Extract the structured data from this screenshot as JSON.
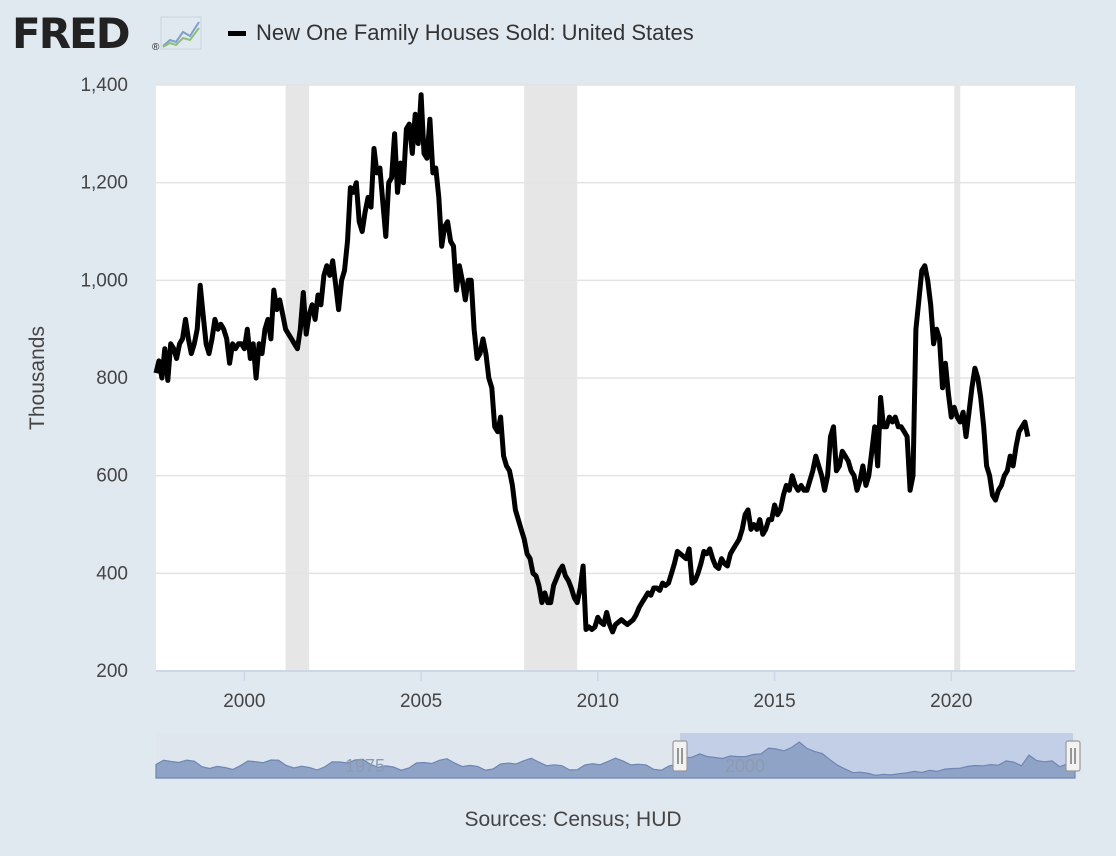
{
  "header": {
    "logo_text": "FRED",
    "logo_reg": "®",
    "logo_icon": "sparkline-chart-icon"
  },
  "footer": {
    "sources": "Sources: Census; HUD"
  },
  "colors": {
    "page_bg": "#e1e9f0",
    "plot_bg": "#ffffff",
    "series": "#000000",
    "recession": "#e6e6e6",
    "navigator_fill": "#8ea3c5",
    "navigator_selection": "#c3cfe6"
  },
  "chart_data": {
    "type": "line",
    "title": "",
    "xlabel": "",
    "ylabel": "Thousands",
    "xlim": [
      "1997-07",
      "2023-07"
    ],
    "ylim": [
      200,
      1400
    ],
    "grid": true,
    "legend": "top-left",
    "y_ticks": [
      200,
      400,
      600,
      800,
      1000,
      1200,
      1400
    ],
    "y_tick_labels": [
      "200",
      "400",
      "600",
      "800",
      "1,000",
      "1,200",
      "1,400"
    ],
    "x_ticks": [
      "2000",
      "2005",
      "2010",
      "2015",
      "2020"
    ],
    "recessions": [
      [
        "2001-03",
        "2001-11"
      ],
      [
        "2007-12",
        "2009-06"
      ],
      [
        "2020-02",
        "2020-04"
      ]
    ],
    "series": [
      {
        "name": "New One Family Houses Sold: United States",
        "color": "#000000",
        "start": "1997-07",
        "frequency": "monthly",
        "values": [
          810,
          835,
          800,
          860,
          795,
          870,
          860,
          840,
          870,
          880,
          920,
          880,
          850,
          870,
          900,
          990,
          930,
          870,
          850,
          880,
          920,
          900,
          910,
          900,
          880,
          830,
          870,
          860,
          870,
          870,
          860,
          900,
          840,
          870,
          800,
          870,
          850,
          900,
          920,
          880,
          980,
          940,
          960,
          930,
          900,
          890,
          880,
          870,
          860,
          900,
          975,
          890,
          930,
          950,
          920,
          970,
          950,
          1010,
          1030,
          1010,
          1040,
          990,
          940,
          1000,
          1020,
          1080,
          1190,
          1180,
          1200,
          1120,
          1100,
          1140,
          1170,
          1150,
          1270,
          1220,
          1230,
          1160,
          1090,
          1200,
          1210,
          1300,
          1180,
          1240,
          1200,
          1310,
          1320,
          1260,
          1340,
          1280,
          1380,
          1260,
          1250,
          1330,
          1220,
          1230,
          1170,
          1070,
          1110,
          1120,
          1080,
          1070,
          980,
          1030,
          1000,
          960,
          1000,
          1000,
          900,
          840,
          850,
          880,
          850,
          800,
          780,
          700,
          690,
          720,
          640,
          620,
          610,
          580,
          530,
          510,
          490,
          470,
          440,
          430,
          400,
          395,
          375,
          340,
          360,
          340,
          340,
          375,
          390,
          405,
          415,
          395,
          385,
          370,
          350,
          340,
          370,
          415,
          285,
          290,
          285,
          290,
          310,
          300,
          295,
          320,
          295,
          280,
          295,
          300,
          305,
          300,
          295,
          300,
          305,
          315,
          330,
          340,
          350,
          360,
          355,
          370,
          370,
          365,
          380,
          375,
          380,
          400,
          420,
          445,
          440,
          435,
          430,
          450,
          380,
          385,
          400,
          420,
          445,
          440,
          450,
          430,
          415,
          410,
          430,
          420,
          415,
          440,
          450,
          460,
          470,
          490,
          520,
          530,
          490,
          500,
          490,
          510,
          480,
          490,
          510,
          510,
          540,
          520,
          530,
          560,
          580,
          570,
          600,
          580,
          570,
          580,
          570,
          570,
          590,
          610,
          640,
          620,
          600,
          570,
          600,
          680,
          700,
          610,
          620,
          650,
          640,
          630,
          610,
          600,
          570,
          590,
          620,
          580,
          600,
          650,
          700,
          620,
          760,
          700,
          700,
          720,
          710,
          720,
          700,
          700,
          690,
          680,
          570,
          600,
          900,
          960,
          1020,
          1030,
          1000,
          950,
          870,
          900,
          880,
          780,
          830,
          770,
          720,
          740,
          720,
          710,
          730,
          680,
          730,
          780,
          820,
          800,
          760,
          700,
          620,
          600,
          560,
          550,
          570,
          580,
          600,
          610,
          640,
          620,
          660,
          690,
          700,
          710,
          680
        ]
      }
    ]
  },
  "navigator": {
    "labels": [
      "1975",
      "2000"
    ]
  }
}
